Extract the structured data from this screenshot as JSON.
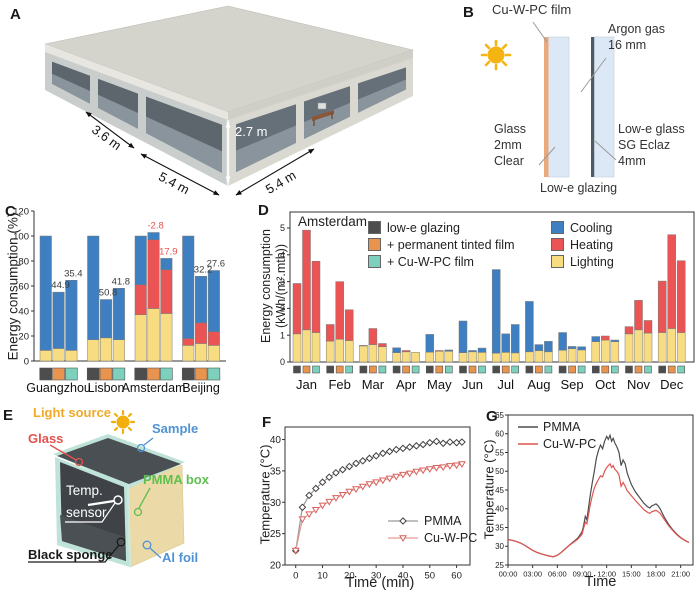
{
  "panels": {
    "a": {
      "label": "A",
      "dim_36": "3.6 m",
      "dim_54_left": "5.4 m",
      "dim_54_right": "5.4 m",
      "dim_27": "2.7 m"
    },
    "b": {
      "label": "B",
      "film": "Cu-W-PC film",
      "argon1": "Argon gas",
      "argon2": "16 mm",
      "glass1": "Glass",
      "glass2": "2mm",
      "glass3": "Clear",
      "lowe1": "Low-e glass",
      "lowe2": "SG Eclaz",
      "lowe3": "4mm",
      "caption": "Low-e glazing",
      "colors": {
        "film": "#e9a97c",
        "pane": "#dce8f5",
        "lowe_coating": "#4f5a63",
        "sun": "#f5b412"
      }
    },
    "c": {
      "label": "C"
    },
    "d": {
      "label": "D",
      "title": "Amsterdam",
      "ylabel1": "Energy consumption",
      "ylabel2": "(kWh/(m².mth))"
    },
    "e": {
      "label": "E",
      "light_source": "Light source",
      "sample": "Sample",
      "glass": "Glass",
      "temp1": "Temp.",
      "temp2": "sensor",
      "pmma_box": "PMMA box",
      "black_sponge": "Black sponge",
      "al_foil": "Al foil",
      "colors": {
        "light_source": "#f0a928",
        "sample": "#4f93d4",
        "glass": "#e4514e",
        "pmma_box": "#5fbf4f",
        "al_foil": "#4f93d4",
        "box_face": "#ebdaa7",
        "frame": "#bfe3d8",
        "interior": "#3f4347"
      }
    },
    "f": {
      "label": "F"
    },
    "g": {
      "label": "G"
    }
  },
  "chart_data": [
    {
      "id": "panel-c",
      "type": "bar",
      "stacked": true,
      "ylabel": "Energy consumption (%)",
      "ylim": [
        0,
        120
      ],
      "yticks": [
        0,
        20,
        40,
        60,
        80,
        100,
        120
      ],
      "categories": [
        "Guangzhou",
        "Lisbon",
        "Amsterdam",
        "Beijing"
      ],
      "glazing_types": [
        "low-e glazing",
        "+ permanent tinted film",
        "+ Cu-W-PC film"
      ],
      "glazing_swatch_colors": [
        "#4d4d4d",
        "#e8944e",
        "#7dd0bc"
      ],
      "components": [
        "Lighting",
        "Heating",
        "Cooling"
      ],
      "component_colors": [
        "#f8dc82",
        "#ea5455",
        "#3e7fc1"
      ],
      "values": [
        [
          [
            8.5,
            0,
            91.5
          ],
          [
            10,
            0,
            45.1
          ],
          [
            8.5,
            0,
            56.1
          ]
        ],
        [
          [
            17,
            0,
            83
          ],
          [
            18.5,
            0,
            30.7
          ],
          [
            17,
            0,
            41.2
          ]
        ],
        [
          [
            37,
            24,
            39
          ],
          [
            42,
            55,
            5.8
          ],
          [
            38,
            35,
            9.1
          ]
        ],
        [
          [
            12.5,
            5.5,
            82
          ],
          [
            14,
            16.5,
            37.3
          ],
          [
            12.5,
            11,
            48.9
          ]
        ]
      ],
      "savings_labels": [
        {
          "group": 0,
          "bar": 1,
          "text": "44.9",
          "color": "#3a3a3a"
        },
        {
          "group": 0,
          "bar": 2,
          "text": "35.4",
          "color": "#3a3a3a"
        },
        {
          "group": 1,
          "bar": 1,
          "text": "50.8",
          "color": "#3a3a3a"
        },
        {
          "group": 1,
          "bar": 2,
          "text": "41.8",
          "color": "#3a3a3a"
        },
        {
          "group": 2,
          "bar": 1,
          "text": "-2.8",
          "color": "#e8534e"
        },
        {
          "group": 2,
          "bar": 2,
          "text": "17.9",
          "color": "#e8534e"
        },
        {
          "group": 3,
          "bar": 1,
          "text": "32.2",
          "color": "#3a3a3a"
        },
        {
          "group": 3,
          "bar": 2,
          "text": "27.6",
          "color": "#3a3a3a"
        }
      ]
    },
    {
      "id": "panel-d",
      "type": "bar",
      "stacked": true,
      "title": "Amsterdam",
      "ylabel": "Energy consumption (kWh/(m².mth))",
      "ylim": [
        0,
        5.6
      ],
      "yticks": [
        0,
        1,
        2,
        3,
        4,
        5
      ],
      "categories": [
        "Jan",
        "Feb",
        "Mar",
        "Apr",
        "May",
        "Jun",
        "Jul",
        "Aug",
        "Sep",
        "Oct",
        "Nov",
        "Dec"
      ],
      "glazing_types": [
        "low-e glazing",
        "+ permanent tinted film",
        "+ Cu-W-PC film"
      ],
      "glazing_swatch_colors": [
        "#4d4d4d",
        "#e8944e",
        "#7dd0bc"
      ],
      "components": [
        "Lighting",
        "Heating",
        "Cooling"
      ],
      "component_colors": [
        "#f8dc82",
        "#ea5455",
        "#3e7fc1"
      ],
      "legend_right": [
        "Cooling",
        "Heating",
        "Lighting"
      ],
      "legend_right_colors": [
        "#3e7fc1",
        "#ea5455",
        "#f8dc82"
      ],
      "values": [
        [
          [
            1.05,
            1.88,
            0
          ],
          [
            1.2,
            3.72,
            0
          ],
          [
            1.1,
            2.66,
            0
          ]
        ],
        [
          [
            0.78,
            0.62,
            0
          ],
          [
            0.85,
            2.15,
            0
          ],
          [
            0.8,
            1.15,
            0
          ]
        ],
        [
          [
            0.6,
            0.02,
            0
          ],
          [
            0.65,
            0.6,
            0
          ],
          [
            0.57,
            0.12,
            0
          ]
        ],
        [
          [
            0.35,
            0,
            0.18
          ],
          [
            0.38,
            0.05,
            0
          ],
          [
            0.36,
            0,
            0
          ]
        ],
        [
          [
            0.37,
            0,
            0.66
          ],
          [
            0.4,
            0.03,
            0
          ],
          [
            0.4,
            0,
            0.05
          ]
        ],
        [
          [
            0.35,
            0,
            1.18
          ],
          [
            0.38,
            0,
            0.05
          ],
          [
            0.36,
            0,
            0.16
          ]
        ],
        [
          [
            0.33,
            0,
            3.12
          ],
          [
            0.36,
            0,
            0.69
          ],
          [
            0.34,
            0,
            1.06
          ]
        ],
        [
          [
            0.38,
            0,
            1.88
          ],
          [
            0.42,
            0,
            0.23
          ],
          [
            0.38,
            0,
            0.39
          ]
        ],
        [
          [
            0.44,
            0,
            0.66
          ],
          [
            0.5,
            0,
            0.08
          ],
          [
            0.45,
            0,
            0.12
          ]
        ],
        [
          [
            0.76,
            0,
            0.19
          ],
          [
            0.82,
            0.15,
            0
          ],
          [
            0.76,
            0,
            0.06
          ]
        ],
        [
          [
            1.05,
            0.27,
            0
          ],
          [
            1.2,
            1.1,
            0
          ],
          [
            1.08,
            0.47,
            0
          ]
        ],
        [
          [
            1.1,
            1.92,
            0
          ],
          [
            1.25,
            3.5,
            0
          ],
          [
            1.1,
            2.68,
            0
          ]
        ]
      ]
    },
    {
      "id": "panel-f",
      "type": "line",
      "xlabel": "Time (min)",
      "ylabel": "Temperature (°C)",
      "xlim": [
        -4,
        65
      ],
      "ylim": [
        20,
        42
      ],
      "xticks": [
        0,
        10,
        20,
        30,
        40,
        50,
        60
      ],
      "yticks": [
        20,
        25,
        30,
        35,
        40
      ],
      "legend_position": "bottom-right",
      "series": [
        {
          "name": "PMMA",
          "line_color": "#9a9a9a",
          "marker_color": "#3f3f3f",
          "marker": "diamond",
          "x": [
            0,
            2.5,
            5,
            7.5,
            10,
            12.5,
            15,
            17.5,
            20,
            22.5,
            25,
            27.5,
            30,
            32.5,
            35,
            37.5,
            40,
            42.5,
            45,
            47.5,
            50,
            52.5,
            55,
            57.5,
            60,
            62
          ],
          "y": [
            22.3,
            29.2,
            31.1,
            32.2,
            33.2,
            34.0,
            34.7,
            35.2,
            35.7,
            36.2,
            36.6,
            37.0,
            37.4,
            37.8,
            38.1,
            38.4,
            38.6,
            38.8,
            39.0,
            39.2,
            39.5,
            39.7,
            39.4,
            39.6,
            39.5,
            39.6
          ]
        },
        {
          "name": "Cu-W-PC",
          "line_color": "#e59a94",
          "marker_color": "#d8615c",
          "marker": "triangle-down",
          "x": [
            0,
            2.5,
            5,
            7.5,
            10,
            12.5,
            15,
            17.5,
            20,
            22.5,
            25,
            27.5,
            30,
            32.5,
            35,
            37.5,
            40,
            42.5,
            45,
            47.5,
            50,
            52.5,
            55,
            57.5,
            60,
            62
          ],
          "y": [
            22.3,
            27.3,
            28.1,
            28.8,
            29.5,
            30.1,
            30.7,
            31.2,
            31.7,
            32.1,
            32.5,
            32.9,
            33.2,
            33.5,
            33.8,
            34.1,
            34.4,
            34.6,
            34.9,
            35.1,
            35.3,
            35.5,
            35.6,
            35.8,
            35.9,
            36.1
          ]
        }
      ]
    },
    {
      "id": "panel-g",
      "type": "line",
      "xlabel": "Time",
      "ylabel": "Temperature (°C)",
      "xlim": [
        0,
        22.5
      ],
      "ylim": [
        25,
        65
      ],
      "xticks": [
        0,
        3,
        6,
        9,
        12,
        15,
        18,
        21
      ],
      "xticklabels": [
        "00:00",
        "03:00",
        "06:00",
        "09:00",
        "12:00",
        "15:00",
        "18:00",
        "21:00"
      ],
      "yticks": [
        25,
        30,
        35,
        40,
        45,
        50,
        55,
        60,
        65
      ],
      "legend_position": "top-left",
      "series": [
        {
          "name": "PMMA",
          "line_color": "#4d4d4d",
          "marker": null,
          "x": [
            0,
            0.5,
            1,
            1.5,
            2,
            2.5,
            3,
            3.5,
            4,
            4.5,
            5,
            5.5,
            6,
            6.5,
            7,
            7.5,
            8,
            8.5,
            9,
            9.2,
            9.4,
            9.6,
            9.8,
            10,
            10.25,
            10.5,
            10.75,
            11,
            11.25,
            11.5,
            11.75,
            12,
            12.2,
            12.4,
            12.6,
            12.8,
            13,
            13.25,
            13.5,
            13.75,
            14,
            14.25,
            14.5,
            15,
            15.5,
            16,
            16.5,
            17,
            17.25,
            17.5,
            17.75,
            18,
            18.25,
            18.5,
            19,
            19.5,
            20,
            20.5,
            21,
            21.5,
            22
          ],
          "y": [
            31.8,
            31.6,
            31.3,
            30.9,
            30.3,
            29.6,
            28.9,
            28.4,
            28.0,
            27.7,
            27.4,
            27.2,
            27.6,
            28.4,
            29.4,
            30.4,
            31.3,
            32.2,
            33.8,
            35.5,
            38.0,
            37.0,
            40.5,
            43.5,
            47.0,
            50.0,
            53.5,
            55.5,
            57.0,
            56.0,
            58.0,
            59.3,
            58.5,
            59.6,
            58.0,
            58.8,
            57.5,
            56.5,
            55.0,
            51.5,
            53.0,
            52.0,
            49.5,
            46.5,
            44.5,
            43.0,
            41.5,
            40.5,
            40.2,
            40.8,
            41.0,
            41.3,
            40.8,
            40.0,
            37.8,
            36.0,
            34.5,
            33.3,
            32.3,
            31.6,
            31.0
          ]
        },
        {
          "name": "Cu-W-PC",
          "line_color": "#e05450",
          "marker": null,
          "x": [
            0,
            0.5,
            1,
            1.5,
            2,
            2.5,
            3,
            3.5,
            4,
            4.5,
            5,
            5.5,
            6,
            6.5,
            7,
            7.5,
            8,
            8.5,
            9,
            9.2,
            9.4,
            9.6,
            9.8,
            10,
            10.25,
            10.5,
            10.75,
            11,
            11.25,
            11.5,
            11.75,
            12,
            12.2,
            12.4,
            12.6,
            12.8,
            13,
            13.25,
            13.5,
            13.75,
            14,
            14.25,
            14.5,
            15,
            15.5,
            16,
            16.5,
            17,
            17.25,
            17.5,
            17.75,
            18,
            18.25,
            18.5,
            19,
            19.5,
            20,
            20.5,
            21,
            21.5,
            22
          ],
          "y": [
            31.8,
            31.6,
            31.3,
            30.9,
            30.3,
            29.6,
            28.9,
            28.4,
            28.0,
            27.7,
            27.4,
            27.2,
            27.6,
            28.4,
            29.4,
            30.3,
            31.1,
            31.9,
            33.2,
            34.8,
            36.5,
            36.0,
            38.5,
            41.0,
            43.5,
            45.5,
            46.8,
            47.8,
            48.8,
            48.5,
            50.0,
            51.0,
            51.5,
            52.0,
            51.0,
            51.5,
            50.5,
            50.0,
            49.0,
            46.0,
            47.0,
            46.0,
            44.8,
            43.5,
            42.2,
            41.0,
            39.8,
            39.0,
            38.8,
            39.2,
            39.4,
            39.6,
            39.2,
            38.8,
            37.2,
            35.6,
            34.3,
            33.1,
            32.2,
            31.6,
            31.0
          ]
        }
      ]
    }
  ]
}
